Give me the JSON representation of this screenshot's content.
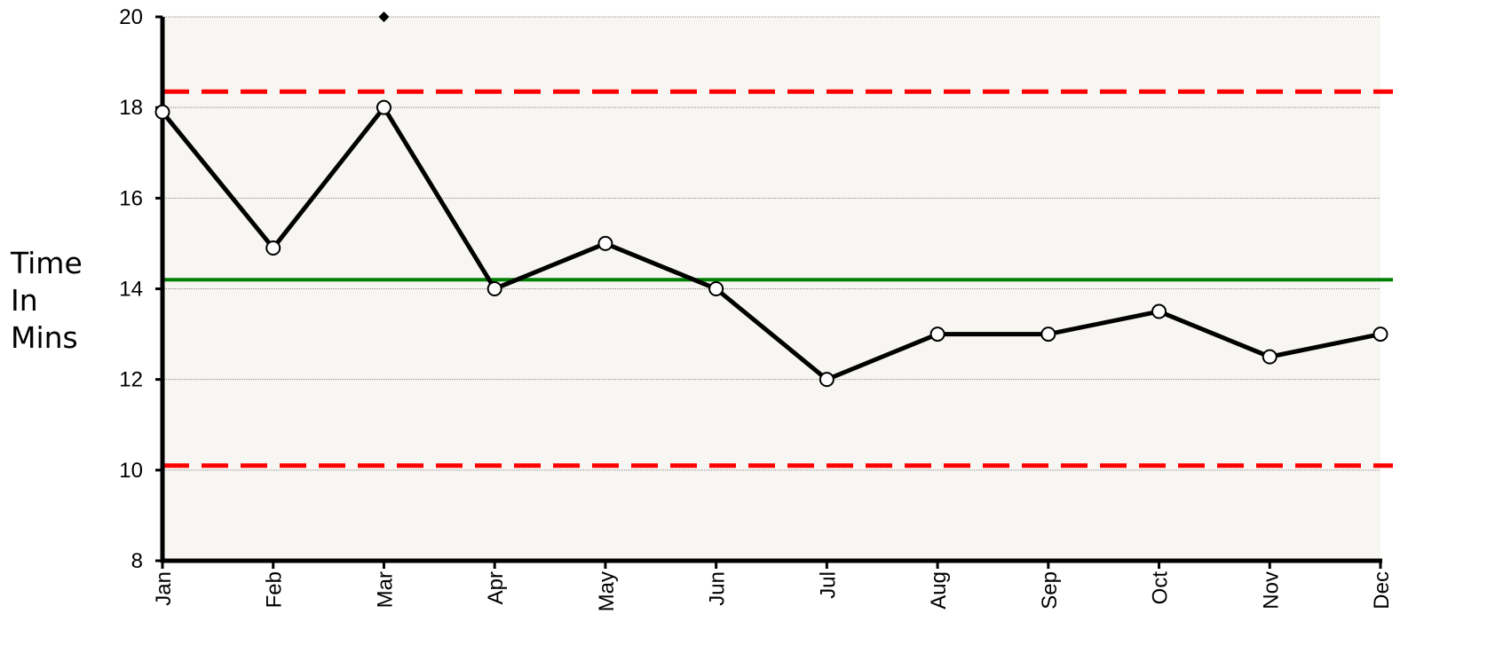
{
  "chart_data": {
    "type": "line",
    "y_label": "Time In Mins",
    "categories": [
      "Jan",
      "Feb",
      "Mar",
      "Apr",
      "May",
      "Jun",
      "Jul",
      "Aug",
      "Sep",
      "Oct",
      "Nov",
      "Dec"
    ],
    "series": [
      {
        "color": "#000000",
        "marker": "circle",
        "values": [
          17.9,
          14.9,
          18,
          14,
          15,
          14,
          12,
          13,
          13,
          13.5,
          12.5,
          13
        ]
      },
      {
        "color": "#000000",
        "marker": "diamond",
        "line": false,
        "values": [
          null,
          null,
          20,
          null,
          null,
          null,
          null,
          null,
          null,
          null,
          null,
          null
        ]
      }
    ],
    "reference_lines": [
      {
        "value": 18.35,
        "color": "#ff0000",
        "style": "dashed"
      },
      {
        "value": 14.2,
        "color": "#008000",
        "style": "solid"
      },
      {
        "value": 10.1,
        "color": "#ff0000",
        "style": "dashed"
      }
    ],
    "ylim": [
      8,
      20
    ],
    "yticks": [
      8,
      10,
      12,
      14,
      16,
      18,
      20
    ],
    "grid": true
  }
}
